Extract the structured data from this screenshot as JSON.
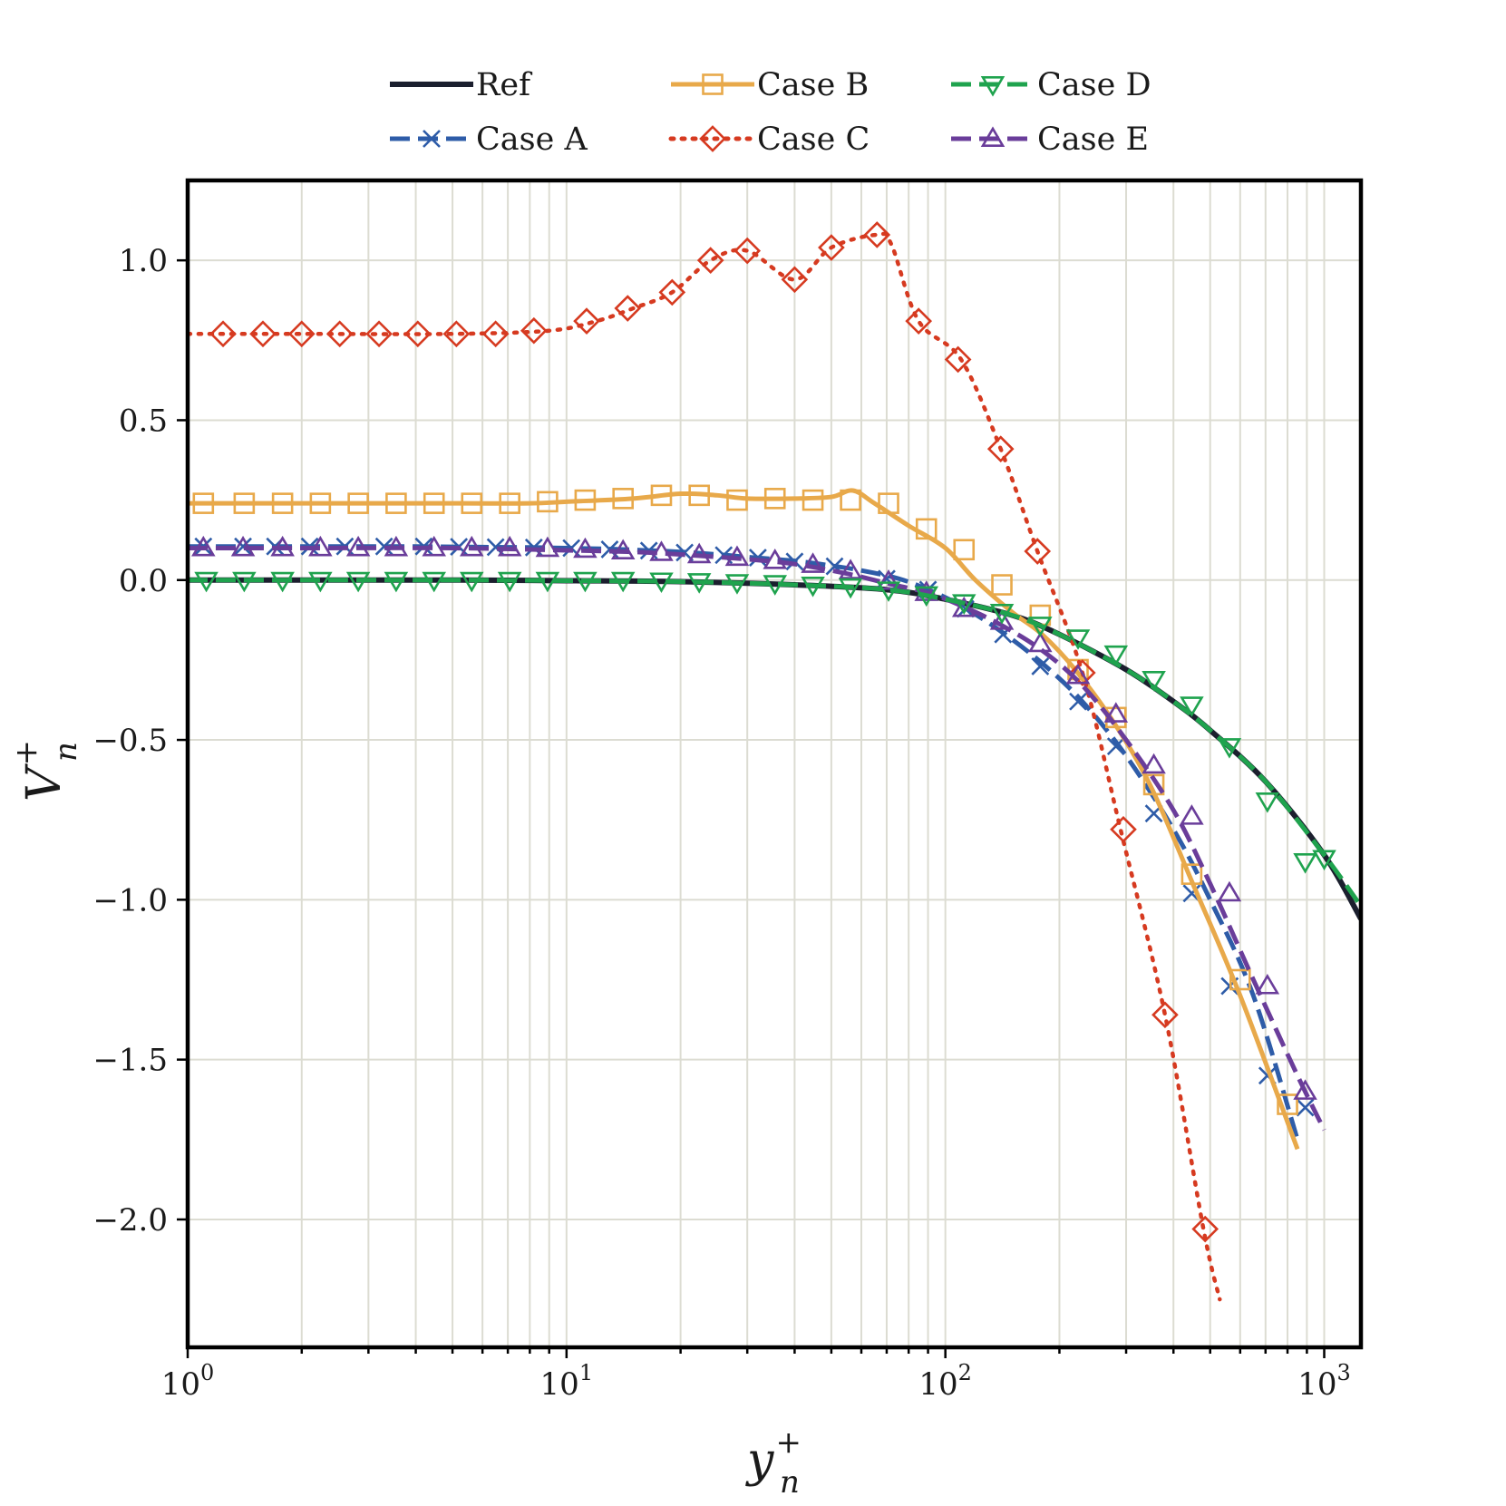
{
  "chart_data": {
    "type": "line",
    "xscale": "log",
    "xlim": [
      1,
      1250
    ],
    "ylim": [
      -2.4,
      1.25
    ],
    "grid": true,
    "legend_position": "top, outside plot",
    "xlabel": {
      "base": "y",
      "sup": "+",
      "sub": "n"
    },
    "ylabel": {
      "base": "V",
      "sup": "+",
      "sub": "n"
    },
    "x_major_ticks": [
      1,
      10,
      100,
      1000
    ],
    "x_tick_labels": [
      {
        "base": "10",
        "exp": "0"
      },
      {
        "base": "10",
        "exp": "1"
      },
      {
        "base": "10",
        "exp": "2"
      },
      {
        "base": "10",
        "exp": "3"
      }
    ],
    "y_ticks": [
      1.0,
      0.5,
      0.0,
      -0.5,
      -1.0,
      -1.5,
      -2.0
    ],
    "y_tick_labels": [
      "1.0",
      "0.5",
      "0.0",
      "−0.5",
      "−1.0",
      "−1.5",
      "−2.0"
    ],
    "series": [
      {
        "name": "Ref",
        "color": "#1b1f2e",
        "dash": "solid",
        "marker": "none",
        "x": [
          1,
          2,
          5,
          10,
          20,
          40,
          70,
          100,
          150,
          200,
          300,
          400,
          500,
          700,
          1000,
          1250
        ],
        "y": [
          0.0,
          0.0,
          0.0,
          -0.002,
          -0.005,
          -0.015,
          -0.03,
          -0.06,
          -0.11,
          -0.17,
          -0.28,
          -0.38,
          -0.47,
          -0.63,
          -0.86,
          -1.06
        ]
      },
      {
        "name": "Case A",
        "color": "#2e5ca8",
        "dash": "dashed",
        "marker": "x",
        "x": [
          1,
          1.2,
          1.5,
          2,
          2.5,
          3,
          4,
          5,
          6,
          8,
          10,
          13,
          16,
          20,
          25,
          30,
          40,
          50,
          60,
          75,
          90,
          110,
          140,
          180,
          230,
          300,
          400,
          500,
          650,
          850
        ],
        "y": [
          0.105,
          0.105,
          0.105,
          0.105,
          0.105,
          0.105,
          0.105,
          0.104,
          0.103,
          0.102,
          0.1,
          0.097,
          0.093,
          0.088,
          0.08,
          0.072,
          0.06,
          0.045,
          0.03,
          0.005,
          -0.03,
          -0.08,
          -0.16,
          -0.26,
          -0.38,
          -0.55,
          -0.78,
          -1.0,
          -1.3,
          -1.75
        ],
        "markers_x": [
          1.1,
          1.4,
          1.7,
          2.1,
          2.6,
          3.3,
          4.2,
          5.2,
          6.5,
          8.2,
          10.3,
          13,
          16.5,
          20.5,
          26,
          32,
          40,
          51,
          70,
          90,
          113,
          142,
          178,
          224,
          282,
          355,
          447,
          563,
          708,
          891
        ],
        "markers_y": [
          0.105,
          0.105,
          0.105,
          0.105,
          0.105,
          0.105,
          0.105,
          0.104,
          0.103,
          0.102,
          0.1,
          0.096,
          0.092,
          0.086,
          0.078,
          0.07,
          0.058,
          0.043,
          0.004,
          -0.03,
          -0.09,
          -0.17,
          -0.27,
          -0.38,
          -0.52,
          -0.73,
          -0.98,
          -1.27,
          -1.55,
          -1.65
        ]
      },
      {
        "name": "Case B",
        "color": "#e8a94a",
        "dash": "solid",
        "marker": "square",
        "x": [
          1,
          2,
          5,
          8,
          10,
          15,
          20,
          25,
          30,
          40,
          50,
          57,
          65,
          80,
          100,
          120,
          150,
          180,
          220,
          280,
          350,
          450,
          600,
          850
        ],
        "y": [
          0.24,
          0.24,
          0.24,
          0.24,
          0.245,
          0.255,
          0.27,
          0.265,
          0.255,
          0.255,
          0.26,
          0.28,
          0.24,
          0.17,
          0.1,
          0.0,
          -0.1,
          -0.17,
          -0.28,
          -0.45,
          -0.65,
          -0.95,
          -1.3,
          -1.78
        ],
        "markers_x": [
          1.1,
          1.41,
          1.78,
          2.24,
          2.82,
          3.55,
          4.47,
          5.62,
          7.08,
          8.91,
          11.2,
          14.1,
          17.8,
          22.4,
          28.2,
          35.5,
          44.7,
          56.2,
          70.8,
          89.1,
          112,
          141,
          178,
          224,
          282,
          355,
          447,
          600,
          800
        ],
        "markers_y": [
          0.24,
          0.24,
          0.24,
          0.24,
          0.24,
          0.24,
          0.24,
          0.24,
          0.24,
          0.245,
          0.25,
          0.255,
          0.265,
          0.265,
          0.25,
          0.255,
          0.25,
          0.25,
          0.24,
          0.16,
          0.095,
          -0.015,
          -0.11,
          -0.28,
          -0.43,
          -0.64,
          -0.92,
          -1.25,
          -1.64
        ]
      },
      {
        "name": "Case C",
        "color": "#d63a20",
        "dash": "dotted",
        "marker": "diamond",
        "x": [
          1,
          2,
          5,
          9,
          12,
          15,
          19,
          24,
          30,
          40,
          50,
          66,
          72,
          85,
          110,
          140,
          175,
          230,
          290,
          380,
          480,
          530
        ],
        "y": [
          0.77,
          0.77,
          0.77,
          0.78,
          0.81,
          0.85,
          0.9,
          1.0,
          1.03,
          0.94,
          1.04,
          1.08,
          1.05,
          0.81,
          0.69,
          0.41,
          0.09,
          -0.29,
          -0.78,
          -1.36,
          -2.03,
          -2.25
        ],
        "markers_x": [
          1.24,
          1.58,
          2.0,
          2.52,
          3.2,
          4.05,
          5.12,
          6.5,
          8.2,
          11.3,
          14.5,
          19,
          24,
          30,
          40,
          50,
          66,
          85,
          108,
          140,
          175,
          230,
          295,
          380,
          485
        ],
        "markers_y": [
          0.77,
          0.77,
          0.77,
          0.77,
          0.77,
          0.77,
          0.77,
          0.77,
          0.78,
          0.81,
          0.85,
          0.9,
          1.0,
          1.03,
          0.94,
          1.04,
          1.08,
          0.81,
          0.69,
          0.41,
          0.09,
          -0.29,
          -0.78,
          -1.36,
          -2.03
        ]
      },
      {
        "name": "Case D",
        "color": "#1fa34e",
        "dash": "dashed",
        "marker": "triangle-down",
        "x": [
          1,
          2,
          5,
          10,
          20,
          40,
          70,
          100,
          150,
          200,
          300,
          400,
          500,
          700,
          1000,
          1250
        ],
        "y": [
          0.0,
          0.0,
          0.0,
          -0.002,
          -0.005,
          -0.015,
          -0.03,
          -0.06,
          -0.11,
          -0.17,
          -0.28,
          -0.38,
          -0.47,
          -0.63,
          -0.86,
          -1.02
        ],
        "markers_x": [
          1.12,
          1.41,
          1.78,
          2.24,
          2.82,
          3.55,
          4.47,
          5.62,
          7.08,
          8.91,
          11.2,
          14.1,
          17.8,
          22.4,
          28.2,
          35.5,
          44.7,
          56.2,
          70.8,
          89.1,
          112,
          141,
          178,
          224,
          282,
          355,
          447,
          562,
          708,
          891,
          1000
        ],
        "markers_y": [
          0.0,
          0.0,
          0.0,
          0.0,
          0.0,
          0.0,
          0.0,
          0.0,
          0.0,
          0.0,
          0.0,
          0.0,
          -0.002,
          -0.004,
          -0.007,
          -0.01,
          -0.015,
          -0.02,
          -0.03,
          -0.045,
          -0.07,
          -0.1,
          -0.14,
          -0.18,
          -0.23,
          -0.31,
          -0.39,
          -0.52,
          -0.69,
          -0.88,
          -0.87
        ]
      },
      {
        "name": "Case E",
        "color": "#6a3d9a",
        "dash": "dashed",
        "marker": "triangle-up",
        "x": [
          1,
          2,
          5,
          10,
          15,
          20,
          30,
          40,
          55,
          70,
          90,
          110,
          140,
          180,
          230,
          300,
          400,
          500,
          650,
          850,
          1000
        ],
        "y": [
          0.1,
          0.1,
          0.1,
          0.093,
          0.088,
          0.08,
          0.065,
          0.05,
          0.02,
          -0.01,
          -0.04,
          -0.08,
          -0.14,
          -0.22,
          -0.33,
          -0.5,
          -0.72,
          -0.95,
          -1.25,
          -1.55,
          -1.72
        ],
        "markers_x": [
          1.1,
          1.4,
          1.78,
          2.24,
          2.82,
          3.55,
          4.47,
          5.62,
          7.08,
          8.91,
          11.2,
          14.1,
          17.8,
          22.4,
          28.2,
          35.5,
          44.7,
          56.2,
          70.8,
          89.1,
          112,
          141,
          178,
          224,
          282,
          355,
          447,
          562,
          708,
          891
        ],
        "markers_y": [
          0.1,
          0.1,
          0.1,
          0.1,
          0.1,
          0.1,
          0.1,
          0.1,
          0.1,
          0.098,
          0.095,
          0.09,
          0.085,
          0.078,
          0.07,
          0.06,
          0.048,
          0.028,
          -0.005,
          -0.04,
          -0.09,
          -0.13,
          -0.2,
          -0.3,
          -0.42,
          -0.58,
          -0.74,
          -0.98,
          -1.27,
          -1.6
        ]
      }
    ]
  }
}
